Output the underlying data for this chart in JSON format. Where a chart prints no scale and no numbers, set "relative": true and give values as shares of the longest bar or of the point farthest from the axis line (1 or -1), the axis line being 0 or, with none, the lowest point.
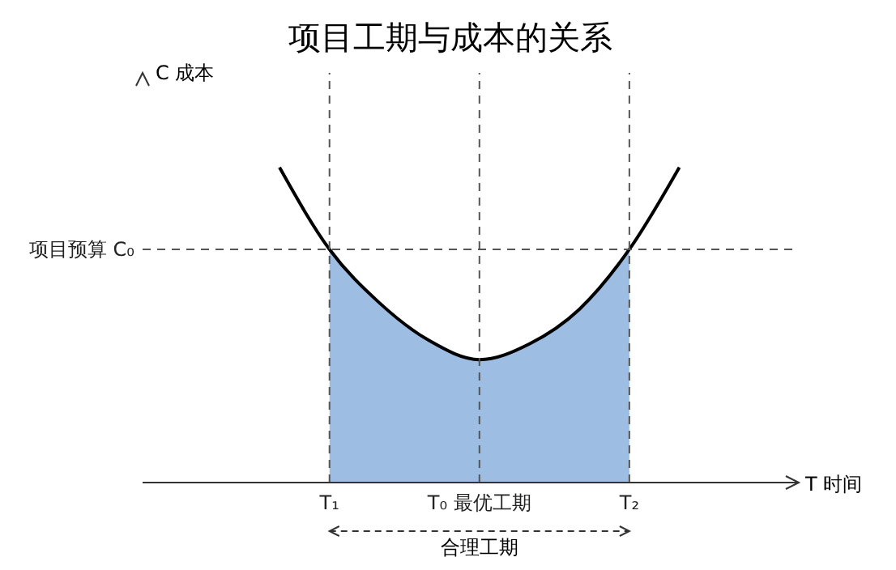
{
  "chart_data": {
    "type": "line",
    "title": "项目工期与成本的关系",
    "ylabel": "C 成本",
    "relative": true,
    "categories": [
      null,
      "T₁",
      null,
      null,
      "T₀ 最优工期",
      null,
      null,
      "T₂",
      null
    ],
    "series": [
      {
        "type": "area",
        "color": "#9dbde2",
        "values": [
          null,
          0.74,
          0.57,
          0.45,
          0.39,
          0.44,
          0.55,
          0.74,
          null
        ]
      },
      {
        "color": "#000000",
        "values": [
          1.0,
          0.74,
          0.57,
          0.45,
          0.39,
          0.44,
          0.55,
          0.74,
          1.0
        ]
      }
    ],
    "ref_lines": [
      {
        "axis": "y",
        "value": 0.74,
        "label": "项目预算 C₀",
        "line_style": "dashed",
        "color": "#555555"
      },
      {
        "axis": "x",
        "value": "T₁",
        "line_style": "dashed",
        "color": "#555555"
      },
      {
        "axis": "x",
        "value": "T₀ 最优工期",
        "line_style": "dashed",
        "color": "#555555"
      },
      {
        "axis": "x",
        "value": "T₂",
        "line_style": "dashed",
        "color": "#555555"
      }
    ],
    "annotations": [
      "T 时间",
      "合理工期"
    ]
  }
}
